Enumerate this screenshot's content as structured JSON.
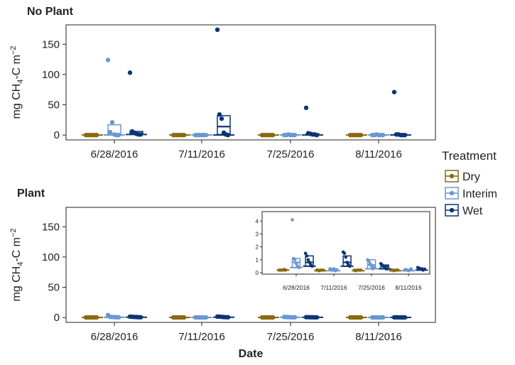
{
  "figure": {
    "xlabel": "Date",
    "legend": {
      "title": "Treatment",
      "placement": "right",
      "entries": [
        {
          "name": "Dry",
          "color": "#8a6a0f"
        },
        {
          "name": "Interim",
          "color": "#6a97cf"
        },
        {
          "name": "Wet",
          "color": "#0b3575"
        }
      ]
    }
  },
  "chart_data": [
    {
      "type": "box",
      "title": "No Plant",
      "ylabel": "mg CH4-C m-2",
      "xlabel": "",
      "ylim": [
        -8,
        182
      ],
      "yticks": [
        0,
        50,
        100,
        150
      ],
      "categories": [
        "6/28/2016",
        "7/11/2016",
        "7/25/2016",
        "8/11/2016"
      ],
      "series": [
        {
          "name": "Dry",
          "color": "#8a6a0f",
          "boxes": [
            {
              "q1": 0,
              "median": 0,
              "q3": 0,
              "points": [
                0,
                0,
                0,
                0,
                0,
                0
              ]
            },
            {
              "q1": 0,
              "median": 0,
              "q3": 0,
              "points": [
                0,
                0,
                0,
                0,
                0,
                0
              ]
            },
            {
              "q1": 0,
              "median": 0,
              "q3": 0,
              "points": [
                0,
                0,
                0,
                0,
                0,
                0
              ]
            },
            {
              "q1": 0,
              "median": 0,
              "q3": 0,
              "points": [
                0,
                0,
                0,
                0,
                0,
                0
              ]
            }
          ]
        },
        {
          "name": "Interim",
          "color": "#6a97cf",
          "boxes": [
            {
              "q1": 0.5,
              "median": 2,
              "q3": 17,
              "points": [
                124,
                5,
                21,
                1,
                0,
                0
              ]
            },
            {
              "q1": 0,
              "median": 0,
              "q3": 0,
              "points": [
                0,
                0,
                0,
                0,
                0,
                0
              ]
            },
            {
              "q1": 0,
              "median": 0.5,
              "q3": 1,
              "points": [
                0,
                0,
                1,
                0,
                0,
                0
              ]
            },
            {
              "q1": 0,
              "median": 0,
              "q3": 0.5,
              "points": [
                0,
                0,
                1,
                0,
                0,
                0
              ]
            }
          ]
        },
        {
          "name": "Wet",
          "color": "#0b3575",
          "boxes": [
            {
              "q1": 1,
              "median": 3,
              "q3": 6,
              "points": [
                103,
                6,
                4,
                2,
                1,
                1
              ]
            },
            {
              "q1": 1,
              "median": 14,
              "q3": 32,
              "points": [
                174,
                34,
                27,
                4,
                1,
                0
              ]
            },
            {
              "q1": 0.5,
              "median": 1,
              "q3": 2,
              "points": [
                45,
                3,
                2,
                1,
                1,
                0
              ]
            },
            {
              "q1": 0,
              "median": 0.5,
              "q3": 1,
              "points": [
                71,
                1,
                1,
                0,
                0,
                0
              ]
            }
          ]
        }
      ]
    },
    {
      "type": "box",
      "title": "Plant",
      "ylabel": "mg CH4-C m-2",
      "xlabel": "Date",
      "ylim": [
        -8,
        182
      ],
      "yticks": [
        0,
        50,
        100,
        150
      ],
      "categories": [
        "6/28/2016",
        "7/11/2016",
        "7/25/2016",
        "8/11/2016"
      ],
      "series": [
        {
          "name": "Dry",
          "color": "#8a6a0f",
          "boxes": [
            {
              "q1": 0.2,
              "median": 0.2,
              "q3": 0.25,
              "points": [
                0.2,
                0.2,
                0.2,
                0.2,
                0.25,
                0.2
              ]
            },
            {
              "q1": 0.15,
              "median": 0.2,
              "q3": 0.2,
              "points": [
                0.2,
                0.2,
                0.15,
                0.2,
                0.2,
                0.2
              ]
            },
            {
              "q1": 0.15,
              "median": 0.2,
              "q3": 0.2,
              "points": [
                0.2,
                0.15,
                0.2,
                0.2,
                0.2,
                0.2
              ]
            },
            {
              "q1": 0.15,
              "median": 0.2,
              "q3": 0.2,
              "points": [
                0.2,
                0.2,
                0.15,
                0.2,
                0.2,
                0.2
              ]
            }
          ]
        },
        {
          "name": "Interim",
          "color": "#6a97cf",
          "boxes": [
            {
              "q1": 0.4,
              "median": 0.8,
              "q3": 1.1,
              "points": [
                4.1,
                1.1,
                1.0,
                0.7,
                0.5,
                0.4
              ]
            },
            {
              "q1": 0.15,
              "median": 0.25,
              "q3": 0.3,
              "points": [
                0.3,
                0.25,
                0.2,
                0.3,
                0.15,
                0.2
              ]
            },
            {
              "q1": 0.3,
              "median": 0.6,
              "q3": 1.0,
              "points": [
                1.0,
                0.9,
                0.7,
                0.5,
                0.3,
                0.4
              ]
            },
            {
              "q1": 0.15,
              "median": 0.2,
              "q3": 0.25,
              "points": [
                0.2,
                0.25,
                0.2,
                0.15,
                0.2,
                0.3
              ]
            }
          ]
        },
        {
          "name": "Wet",
          "color": "#0b3575",
          "boxes": [
            {
              "q1": 0.5,
              "median": 0.8,
              "q3": 1.3,
              "points": [
                1.5,
                1.3,
                1.0,
                0.8,
                0.6,
                0.5
              ]
            },
            {
              "q1": 0.5,
              "median": 0.8,
              "q3": 1.3,
              "points": [
                1.6,
                1.5,
                1.2,
                0.8,
                0.6,
                0.5
              ]
            },
            {
              "q1": 0.3,
              "median": 0.5,
              "q3": 0.6,
              "points": [
                0.7,
                0.6,
                0.5,
                0.4,
                0.3,
                0.3
              ]
            },
            {
              "q1": 0.2,
              "median": 0.3,
              "q3": 0.35,
              "points": [
                0.4,
                0.35,
                0.3,
                0.3,
                0.2,
                0.25
              ]
            }
          ]
        }
      ],
      "inset": {
        "ylim": [
          0,
          4.4
        ],
        "yticks": [
          0,
          1,
          2,
          3,
          4
        ],
        "categories": [
          "6/28/2016",
          "7/11/2016",
          "7/25/2016",
          "8/11/2016"
        ]
      }
    }
  ]
}
